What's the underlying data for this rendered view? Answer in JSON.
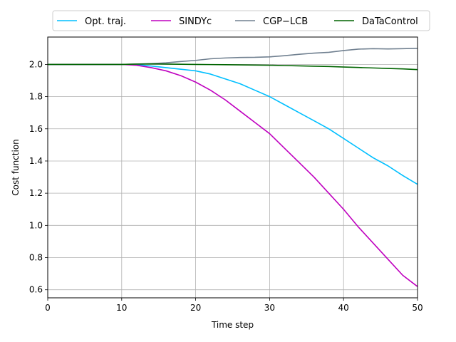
{
  "chart_data": {
    "type": "line",
    "xlabel": "Time step",
    "ylabel": "Cost function",
    "xlim": [
      0,
      50
    ],
    "ylim": [
      0.55,
      2.17
    ],
    "xticks": [
      0,
      10,
      20,
      30,
      40,
      50
    ],
    "yticks": [
      0.6,
      0.8,
      1.0,
      1.2,
      1.4,
      1.6,
      1.8,
      2.0
    ],
    "xtick_labels": [
      "0",
      "10",
      "20",
      "30",
      "40",
      "50"
    ],
    "ytick_labels": [
      "0.6",
      "0.8",
      "1.0",
      "1.2",
      "1.4",
      "1.6",
      "1.8",
      "2.0"
    ],
    "grid": true,
    "legend_position": "top-center, above plot",
    "x": [
      0,
      5,
      10,
      12,
      14,
      16,
      18,
      20,
      22,
      24,
      26,
      28,
      30,
      32,
      34,
      36,
      38,
      40,
      42,
      44,
      46,
      48,
      50
    ],
    "series": [
      {
        "name": "Opt. traj.",
        "color": "#00bfff",
        "values": [
          2.0,
          2.0,
          2.0,
          2.0,
          1.99,
          1.98,
          1.97,
          1.96,
          1.94,
          1.91,
          1.88,
          1.84,
          1.8,
          1.75,
          1.7,
          1.65,
          1.6,
          1.54,
          1.48,
          1.42,
          1.37,
          1.31,
          1.255
        ]
      },
      {
        "name": "SINDYc",
        "color": "#bf00bf",
        "values": [
          2.0,
          2.0,
          2.0,
          1.995,
          1.98,
          1.96,
          1.93,
          1.89,
          1.84,
          1.78,
          1.71,
          1.64,
          1.57,
          1.48,
          1.39,
          1.3,
          1.2,
          1.1,
          0.99,
          0.89,
          0.79,
          0.69,
          0.62
        ]
      },
      {
        "name": "CGP−LCB",
        "color": "#708090",
        "values": [
          2.0,
          2.0,
          2.0,
          2.002,
          2.005,
          2.01,
          2.018,
          2.025,
          2.035,
          2.04,
          2.043,
          2.044,
          2.047,
          2.054,
          2.063,
          2.07,
          2.075,
          2.086,
          2.095,
          2.098,
          2.096,
          2.098,
          2.1
        ]
      },
      {
        "name": "DaTaControl",
        "color": "#006400",
        "values": [
          2.0,
          2.0,
          2.0,
          2.002,
          2.003,
          2.002,
          2.001,
          2.0,
          1.999,
          1.998,
          1.997,
          1.996,
          1.995,
          1.993,
          1.991,
          1.989,
          1.987,
          1.984,
          1.981,
          1.978,
          1.975,
          1.972,
          1.968
        ]
      }
    ]
  }
}
